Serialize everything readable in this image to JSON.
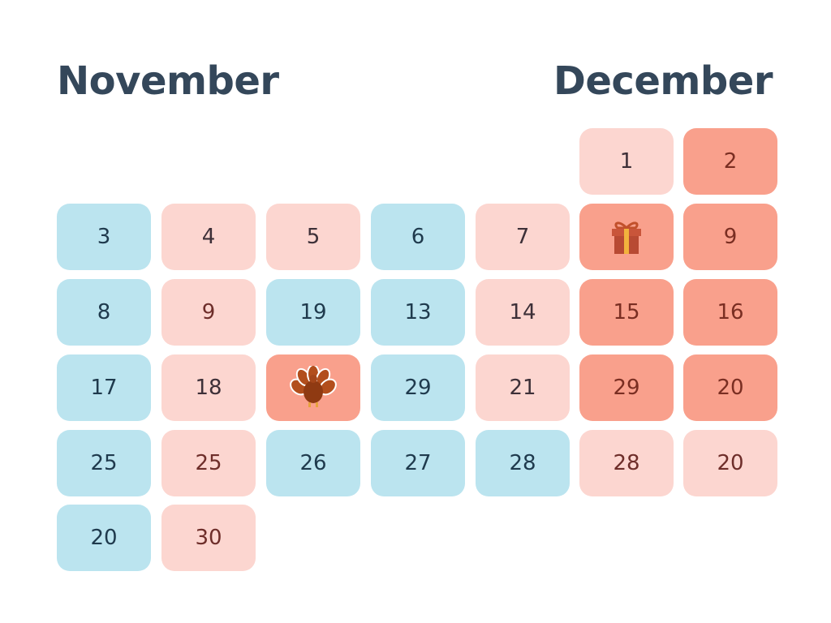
{
  "months": {
    "left_title": "November",
    "right_title": "December"
  },
  "colors": {
    "blue": "#bbe4ef",
    "pink": "#fcd6d0",
    "coral": "#f9a08c",
    "title": "#34475a"
  },
  "grid": {
    "rows": [
      [
        {
          "col": 5,
          "label": "1",
          "style": "pink"
        },
        {
          "col": 6,
          "label": "2",
          "style": "coral"
        }
      ],
      [
        {
          "col": 0,
          "label": "3",
          "style": "blue"
        },
        {
          "col": 1,
          "label": "4",
          "style": "pink"
        },
        {
          "col": 2,
          "label": "5",
          "style": "pink"
        },
        {
          "col": 3,
          "label": "6",
          "style": "blue"
        },
        {
          "col": 4,
          "label": "7",
          "style": "pink"
        },
        {
          "col": 5,
          "label": "",
          "style": "coral",
          "icon": "gift-icon"
        },
        {
          "col": 6,
          "label": "9",
          "style": "coral"
        }
      ],
      [
        {
          "col": 0,
          "label": "8",
          "style": "blue"
        },
        {
          "col": 1,
          "label": "9",
          "style": "pink warm"
        },
        {
          "col": 2,
          "label": "19",
          "style": "blue"
        },
        {
          "col": 3,
          "label": "13",
          "style": "blue"
        },
        {
          "col": 4,
          "label": "14",
          "style": "pink"
        },
        {
          "col": 5,
          "label": "15",
          "style": "coral"
        },
        {
          "col": 6,
          "label": "16",
          "style": "coral"
        }
      ],
      [
        {
          "col": 0,
          "label": "17",
          "style": "blue"
        },
        {
          "col": 1,
          "label": "18",
          "style": "pink"
        },
        {
          "col": 2,
          "label": "",
          "style": "coral",
          "icon": "turkey-icon"
        },
        {
          "col": 3,
          "label": "29",
          "style": "blue"
        },
        {
          "col": 4,
          "label": "21",
          "style": "pink"
        },
        {
          "col": 5,
          "label": "29",
          "style": "coral"
        },
        {
          "col": 6,
          "label": "20",
          "style": "coral"
        }
      ],
      [
        {
          "col": 0,
          "label": "25",
          "style": "blue"
        },
        {
          "col": 1,
          "label": "25",
          "style": "pink warm"
        },
        {
          "col": 2,
          "label": "26",
          "style": "blue"
        },
        {
          "col": 3,
          "label": "27",
          "style": "blue"
        },
        {
          "col": 4,
          "label": "28",
          "style": "blue"
        },
        {
          "col": 5,
          "label": "28",
          "style": "pink warm"
        },
        {
          "col": 6,
          "label": "20",
          "style": "pink warm"
        }
      ],
      [
        {
          "col": 0,
          "label": "20",
          "style": "blue"
        },
        {
          "col": 1,
          "label": "30",
          "style": "pink warm"
        }
      ]
    ]
  }
}
